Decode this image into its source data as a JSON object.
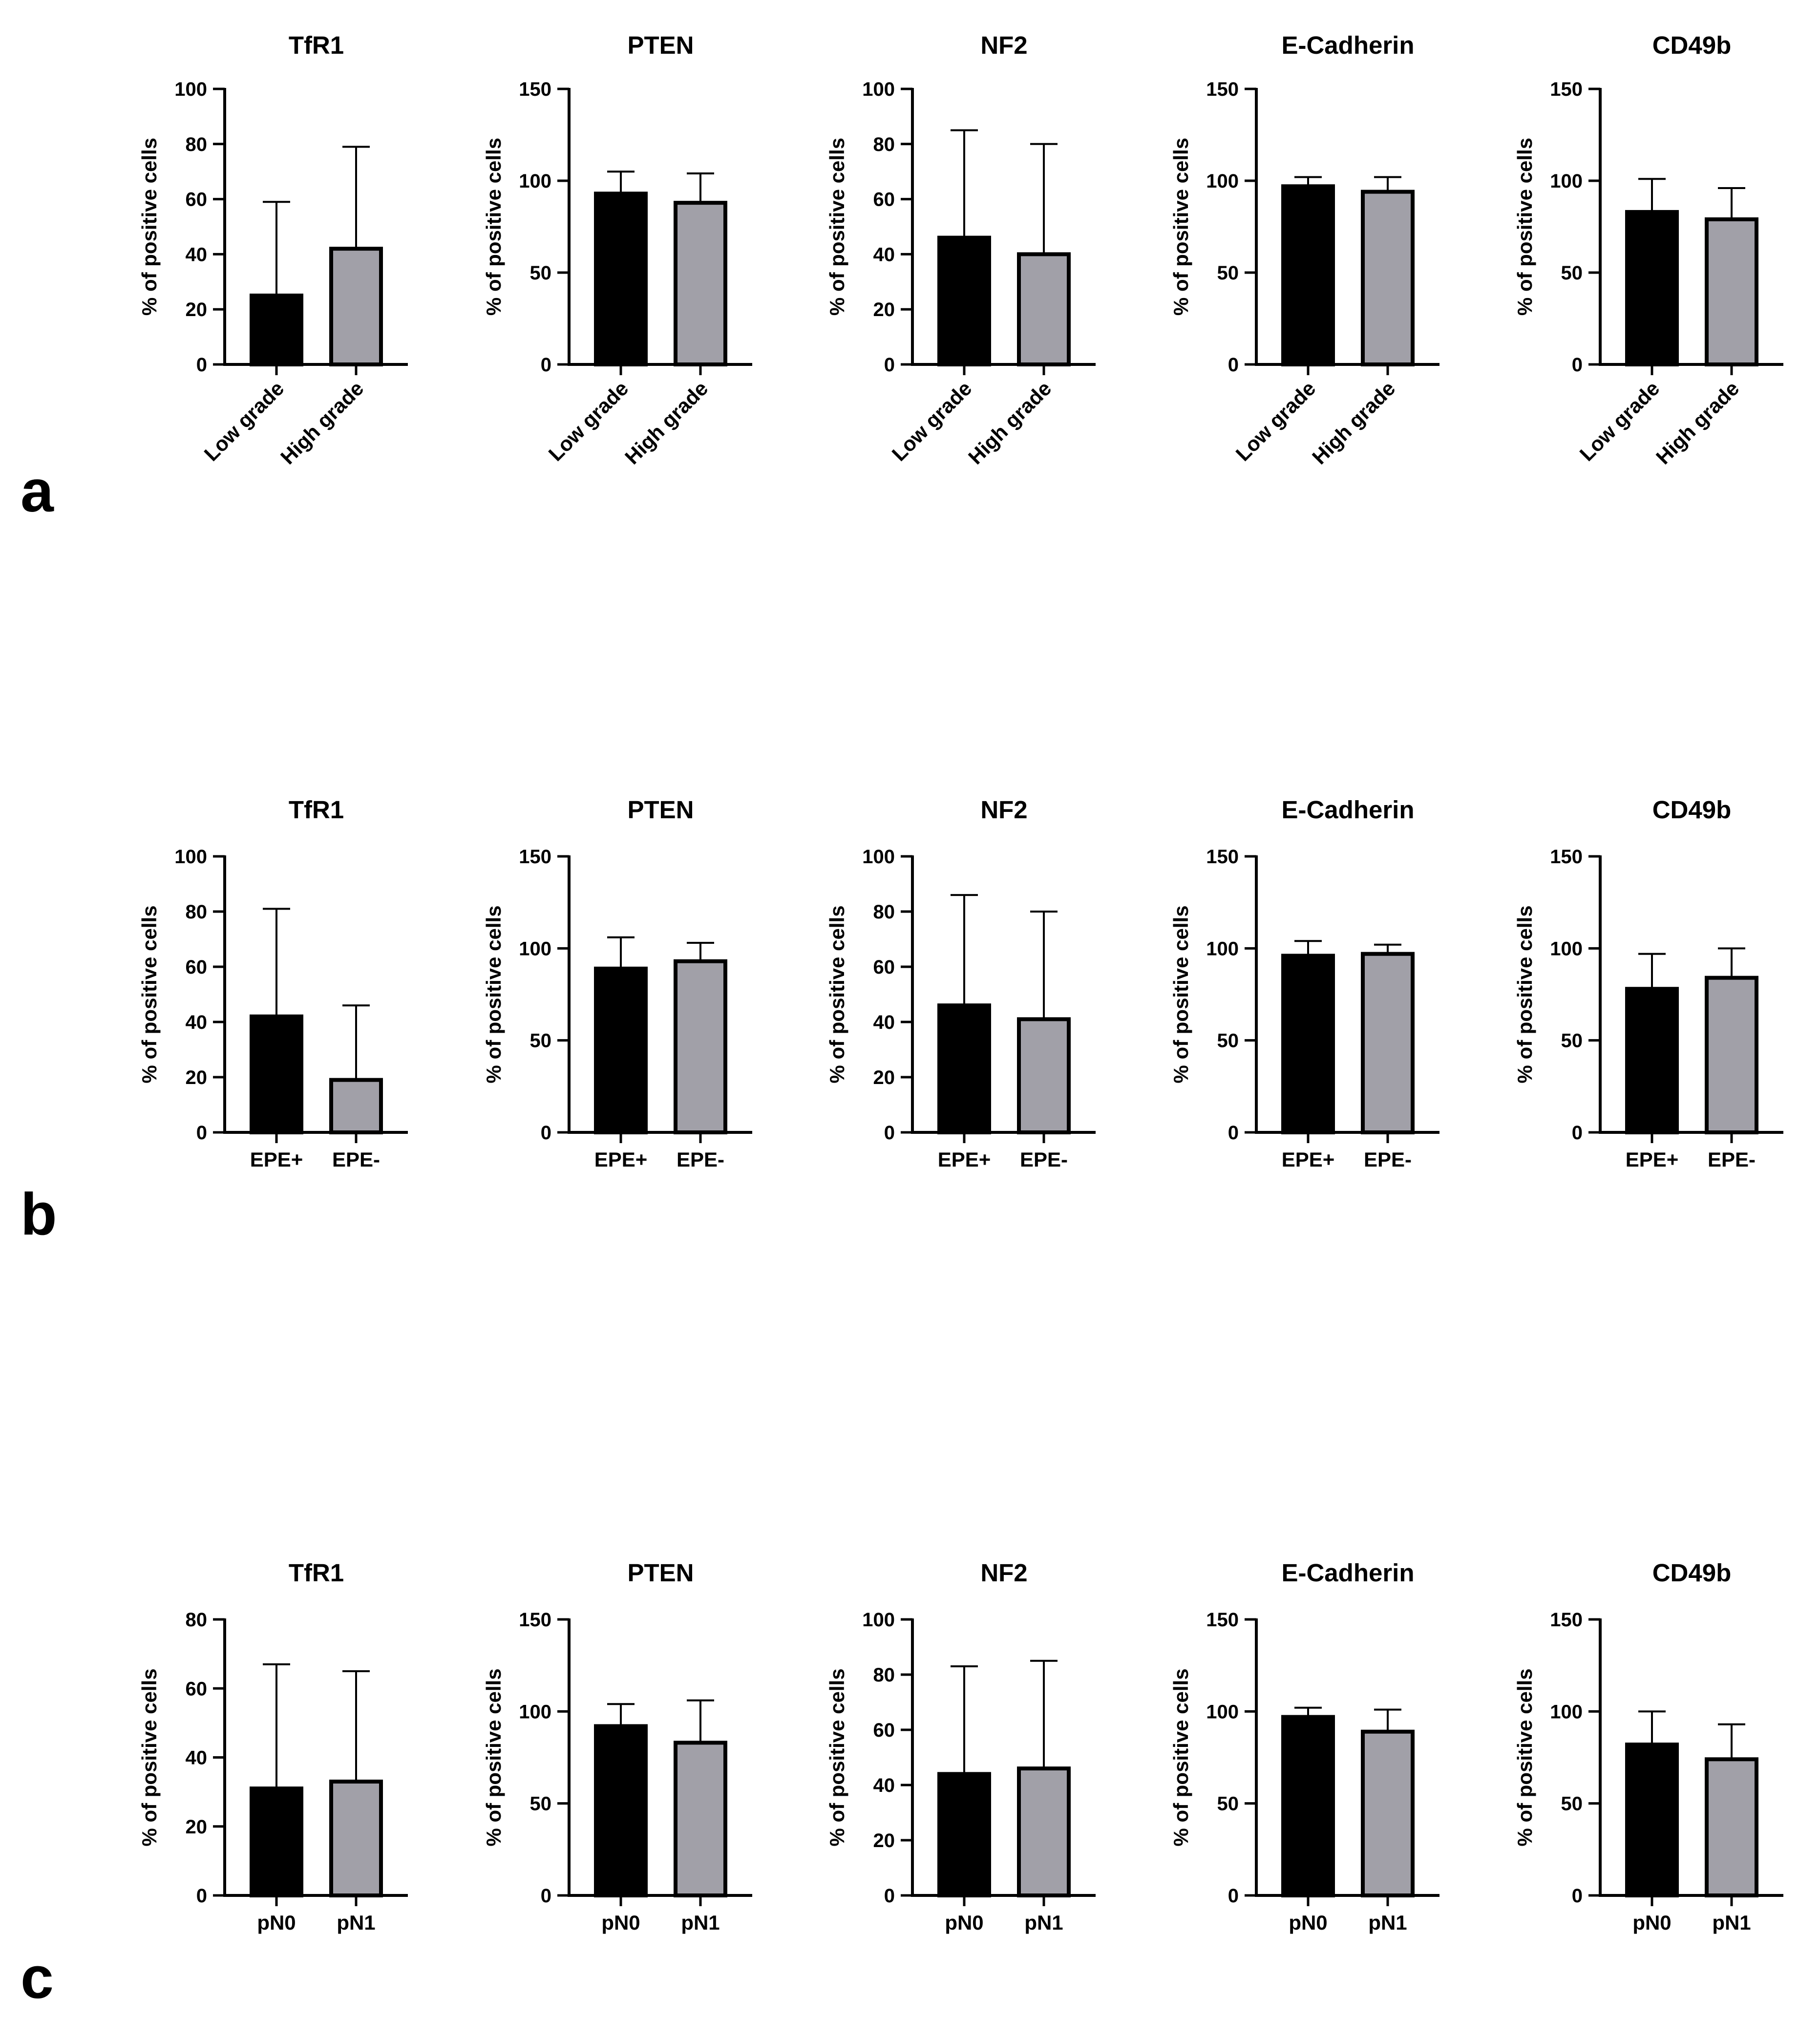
{
  "colors": {
    "low_or_first_group": "#000000",
    "high_or_second_group": "#a1a0a8",
    "axis": "#000000",
    "background": "#ffffff"
  },
  "panels": [
    {
      "label": "a"
    },
    {
      "label": "b"
    },
    {
      "label": "c"
    }
  ],
  "chart_data": [
    {
      "panel": "a",
      "type": "bar",
      "title": "TfR1",
      "xlabel": "",
      "ylabel": "% of positive cells",
      "categories": [
        "Low grade",
        "High grade"
      ],
      "values": [
        25,
        42
      ],
      "error_upper": [
        59,
        79
      ],
      "ylim": [
        0,
        100
      ],
      "yticks": [
        0,
        20,
        40,
        60,
        80,
        100
      ],
      "grid": false
    },
    {
      "panel": "a",
      "type": "bar",
      "title": "PTEN",
      "xlabel": "",
      "ylabel": "% of positive cells",
      "categories": [
        "Low grade",
        "High grade"
      ],
      "values": [
        93,
        88
      ],
      "error_upper": [
        105,
        104
      ],
      "ylim": [
        0,
        150
      ],
      "yticks": [
        0,
        50,
        100,
        150
      ],
      "grid": false
    },
    {
      "panel": "a",
      "type": "bar",
      "title": "NF2",
      "xlabel": "",
      "ylabel": "% of positive cells",
      "categories": [
        "Low grade",
        "High grade"
      ],
      "values": [
        46,
        40
      ],
      "error_upper": [
        85,
        80
      ],
      "ylim": [
        0,
        100
      ],
      "yticks": [
        0,
        20,
        40,
        60,
        80,
        100
      ],
      "grid": false
    },
    {
      "panel": "a",
      "type": "bar",
      "title": "E-Cadherin",
      "xlabel": "",
      "ylabel": "% of positive cells",
      "categories": [
        "Low grade",
        "High grade"
      ],
      "values": [
        97,
        94
      ],
      "error_upper": [
        102,
        102
      ],
      "ylim": [
        0,
        150
      ],
      "yticks": [
        0,
        50,
        100,
        150
      ],
      "grid": false
    },
    {
      "panel": "a",
      "type": "bar",
      "title": "CD49b",
      "xlabel": "",
      "ylabel": "% of positive cells",
      "categories": [
        "Low grade",
        "High grade"
      ],
      "values": [
        83,
        79
      ],
      "error_upper": [
        101,
        96
      ],
      "ylim": [
        0,
        150
      ],
      "yticks": [
        0,
        50,
        100,
        150
      ],
      "grid": false
    },
    {
      "panel": "b",
      "type": "bar",
      "title": "TfR1",
      "xlabel": "",
      "ylabel": "% of positive cells",
      "categories": [
        "EPE+",
        "EPE-"
      ],
      "values": [
        42,
        19
      ],
      "error_upper": [
        81,
        46
      ],
      "ylim": [
        0,
        100
      ],
      "yticks": [
        0,
        20,
        40,
        60,
        80,
        100
      ],
      "grid": false
    },
    {
      "panel": "b",
      "type": "bar",
      "title": "PTEN",
      "xlabel": "",
      "ylabel": "% of positive cells",
      "categories": [
        "EPE+",
        "EPE-"
      ],
      "values": [
        89,
        93
      ],
      "error_upper": [
        106,
        103
      ],
      "ylim": [
        0,
        150
      ],
      "yticks": [
        0,
        50,
        100,
        150
      ],
      "grid": false
    },
    {
      "panel": "b",
      "type": "bar",
      "title": "NF2",
      "xlabel": "",
      "ylabel": "% of positive cells",
      "categories": [
        "EPE+",
        "EPE-"
      ],
      "values": [
        46,
        41
      ],
      "error_upper": [
        86,
        80
      ],
      "ylim": [
        0,
        100
      ],
      "yticks": [
        0,
        20,
        40,
        60,
        80,
        100
      ],
      "grid": false
    },
    {
      "panel": "b",
      "type": "bar",
      "title": "E-Cadherin",
      "xlabel": "",
      "ylabel": "% of positive cells",
      "categories": [
        "EPE+",
        "EPE-"
      ],
      "values": [
        96,
        97
      ],
      "error_upper": [
        104,
        102
      ],
      "ylim": [
        0,
        150
      ],
      "yticks": [
        0,
        50,
        100,
        150
      ],
      "grid": false
    },
    {
      "panel": "b",
      "type": "bar",
      "title": "CD49b",
      "xlabel": "",
      "ylabel": "% of positive cells",
      "categories": [
        "EPE+",
        "EPE-"
      ],
      "values": [
        78,
        84
      ],
      "error_upper": [
        97,
        100
      ],
      "ylim": [
        0,
        150
      ],
      "yticks": [
        0,
        50,
        100,
        150
      ],
      "grid": false
    },
    {
      "panel": "c",
      "type": "bar",
      "title": "TfR1",
      "xlabel": "",
      "ylabel": "% of positive cells",
      "categories": [
        "pN0",
        "pN1"
      ],
      "values": [
        31,
        33
      ],
      "error_upper": [
        67,
        65
      ],
      "ylim": [
        0,
        80
      ],
      "yticks": [
        0,
        20,
        40,
        60,
        80
      ],
      "grid": false
    },
    {
      "panel": "c",
      "type": "bar",
      "title": "PTEN",
      "xlabel": "",
      "ylabel": "% of positive cells",
      "categories": [
        "pN0",
        "pN1"
      ],
      "values": [
        92,
        83
      ],
      "error_upper": [
        104,
        106
      ],
      "ylim": [
        0,
        150
      ],
      "yticks": [
        0,
        50,
        100,
        150
      ],
      "grid": false
    },
    {
      "panel": "c",
      "type": "bar",
      "title": "NF2",
      "xlabel": "",
      "ylabel": "% of positive cells",
      "categories": [
        "pN0",
        "pN1"
      ],
      "values": [
        44,
        46
      ],
      "error_upper": [
        83,
        85
      ],
      "ylim": [
        0,
        100
      ],
      "yticks": [
        0,
        20,
        40,
        60,
        80,
        100
      ],
      "grid": false
    },
    {
      "panel": "c",
      "type": "bar",
      "title": "E-Cadherin",
      "xlabel": "",
      "ylabel": "% of positive cells",
      "categories": [
        "pN0",
        "pN1"
      ],
      "values": [
        97,
        89
      ],
      "error_upper": [
        102,
        101
      ],
      "ylim": [
        0,
        150
      ],
      "yticks": [
        0,
        50,
        100,
        150
      ],
      "grid": false
    },
    {
      "panel": "c",
      "type": "bar",
      "title": "CD49b",
      "xlabel": "",
      "ylabel": "% of positive cells",
      "categories": [
        "pN0",
        "pN1"
      ],
      "values": [
        82,
        74
      ],
      "error_upper": [
        100,
        93
      ],
      "ylim": [
        0,
        150
      ],
      "yticks": [
        0,
        50,
        100,
        150
      ],
      "grid": false
    }
  ]
}
